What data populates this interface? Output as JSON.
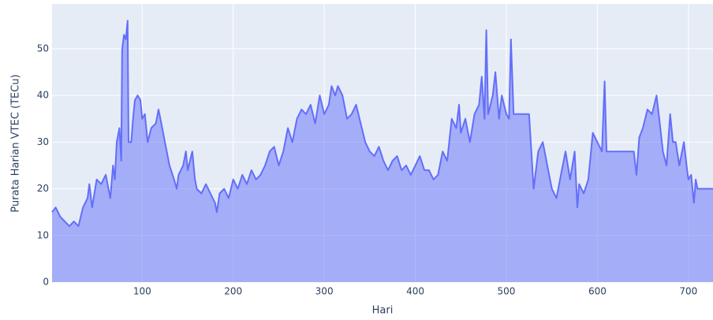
{
  "chart_data": {
    "type": "area",
    "x_label": "Hari",
    "y_label": "Purata Harian VTEC (TECu)",
    "x": [
      1,
      5,
      10,
      15,
      20,
      25,
      30,
      35,
      40,
      42,
      45,
      50,
      55,
      60,
      65,
      68,
      70,
      72,
      75,
      77,
      78,
      80,
      82,
      84,
      85,
      88,
      90,
      92,
      95,
      98,
      100,
      103,
      106,
      110,
      115,
      118,
      120,
      125,
      130,
      135,
      138,
      140,
      145,
      148,
      150,
      155,
      158,
      160,
      165,
      170,
      175,
      180,
      182,
      185,
      190,
      195,
      200,
      205,
      210,
      215,
      220,
      225,
      230,
      235,
      240,
      245,
      250,
      255,
      260,
      265,
      270,
      275,
      280,
      285,
      290,
      295,
      300,
      305,
      308,
      312,
      315,
      320,
      325,
      330,
      335,
      340,
      345,
      350,
      355,
      360,
      365,
      370,
      375,
      380,
      385,
      390,
      395,
      400,
      405,
      410,
      415,
      420,
      425,
      430,
      435,
      440,
      445,
      448,
      450,
      455,
      460,
      465,
      470,
      473,
      476,
      478,
      480,
      485,
      488,
      492,
      495,
      500,
      503,
      505,
      508,
      520,
      525,
      530,
      535,
      540,
      545,
      550,
      555,
      560,
      565,
      570,
      575,
      578,
      580,
      585,
      590,
      595,
      600,
      605,
      608,
      610,
      640,
      643,
      646,
      650,
      655,
      660,
      665,
      668,
      672,
      676,
      680,
      683,
      686,
      690,
      695,
      698,
      700,
      703,
      706,
      708,
      710,
      727
    ],
    "values": [
      15,
      16,
      14,
      13,
      12,
      13,
      12,
      16,
      18,
      21,
      16,
      22,
      21,
      23,
      18,
      25,
      22,
      30,
      33,
      26,
      50,
      53,
      52,
      56,
      30,
      30,
      35,
      39,
      40,
      39,
      35,
      36,
      30,
      33,
      34,
      37,
      35,
      30,
      25,
      22,
      20,
      23,
      25,
      28,
      24,
      28,
      22,
      20,
      19,
      21,
      19,
      17,
      15,
      19,
      20,
      18,
      22,
      20,
      23,
      21,
      24,
      22,
      23,
      25,
      28,
      29,
      25,
      28,
      33,
      30,
      35,
      37,
      36,
      38,
      34,
      40,
      36,
      38,
      42,
      40,
      42,
      40,
      35,
      36,
      38,
      34,
      30,
      28,
      27,
      29,
      26,
      24,
      26,
      27,
      24,
      25,
      23,
      25,
      27,
      24,
      24,
      22,
      23,
      28,
      26,
      35,
      33,
      38,
      32,
      35,
      30,
      36,
      38,
      44,
      35,
      54,
      36,
      40,
      45,
      35,
      40,
      36,
      35,
      52,
      36,
      36,
      36,
      20,
      28,
      30,
      25,
      20,
      18,
      23,
      28,
      22,
      28,
      16,
      21,
      19,
      22,
      32,
      30,
      28,
      43,
      28,
      28,
      23,
      31,
      33,
      37,
      36,
      40,
      35,
      28,
      25,
      36,
      30,
      30,
      25,
      30,
      25,
      22,
      23,
      17,
      22,
      20,
      20
    ],
    "color": "#636efa",
    "xlim": [
      1,
      727
    ],
    "ylim": [
      0,
      59.6
    ],
    "xticks": [
      100,
      200,
      300,
      400,
      500,
      600,
      700
    ],
    "yticks": [
      0,
      10,
      20,
      30,
      40,
      50
    ],
    "grid": true
  }
}
